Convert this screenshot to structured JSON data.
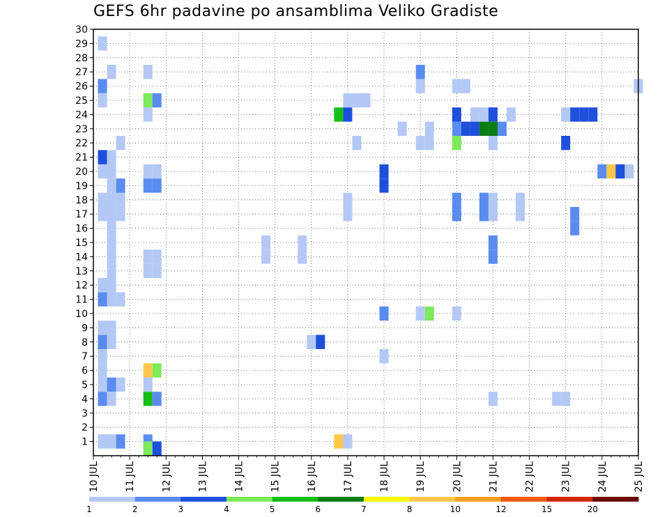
{
  "chart_data": {
    "type": "heatmap",
    "title": "GEFS 6hr padavine po ansamblima Veliko Gradiste",
    "x_ticks": [
      "10 JUL",
      "11 JUL",
      "12 JUL",
      "13 JUL",
      "14 JUL",
      "15 JUL",
      "16 JUL",
      "17 JUL",
      "18 JUL",
      "19 JUL",
      "20 JUL",
      "21 JUL",
      "22 JUL",
      "23 JUL",
      "24 JUL",
      "25 JUL"
    ],
    "xlim_days": [
      10,
      25
    ],
    "y_ticks": [
      1,
      2,
      3,
      4,
      5,
      6,
      7,
      8,
      9,
      10,
      11,
      12,
      13,
      14,
      15,
      16,
      17,
      18,
      19,
      20,
      21,
      22,
      23,
      24,
      25,
      26,
      27,
      28,
      29,
      30
    ],
    "ylim": [
      0,
      30
    ],
    "grid": true,
    "colorbar": {
      "labels": [
        "1",
        "2",
        "3",
        "4",
        "5",
        "6",
        "7",
        "8",
        "10",
        "12",
        "15",
        "20"
      ],
      "colors": [
        "#b4c8f5",
        "#5a8cf0",
        "#1e50dc",
        "#7dea5a",
        "#14be14",
        "#0a7d14",
        "#fffa0a",
        "#ffc84b",
        "#ffa01e",
        "#f05a0a",
        "#d2280a",
        "#6e0a0a"
      ]
    },
    "cells": [
      {
        "d": 10.25,
        "m": 1,
        "c": 0
      },
      {
        "d": 10.5,
        "m": 1,
        "c": 0
      },
      {
        "d": 10.75,
        "m": 1,
        "c": 1
      },
      {
        "d": 11.5,
        "m": 1,
        "c": 1
      },
      {
        "d": 16.75,
        "m": 1,
        "c": 7
      },
      {
        "d": 17.0,
        "m": 1,
        "c": 0
      },
      {
        "d": 11.5,
        "m": 0.5,
        "c": 3
      },
      {
        "d": 11.75,
        "m": 0.5,
        "c": 2
      },
      {
        "d": 10.25,
        "m": 4,
        "c": 1
      },
      {
        "d": 10.5,
        "m": 4,
        "c": 0
      },
      {
        "d": 11.5,
        "m": 4,
        "c": 4
      },
      {
        "d": 11.75,
        "m": 4,
        "c": 1
      },
      {
        "d": 21.0,
        "m": 4,
        "c": 0
      },
      {
        "d": 22.75,
        "m": 4,
        "c": 0
      },
      {
        "d": 23.0,
        "m": 4,
        "c": 0
      },
      {
        "d": 10.25,
        "m": 5,
        "c": 0
      },
      {
        "d": 10.5,
        "m": 5,
        "c": 1
      },
      {
        "d": 10.75,
        "m": 5,
        "c": 0
      },
      {
        "d": 11.5,
        "m": 5,
        "c": 0
      },
      {
        "d": 10.25,
        "m": 6,
        "c": 0
      },
      {
        "d": 11.5,
        "m": 6,
        "c": 7
      },
      {
        "d": 11.75,
        "m": 6,
        "c": 3
      },
      {
        "d": 10.25,
        "m": 7,
        "c": 0
      },
      {
        "d": 18.0,
        "m": 7,
        "c": 0
      },
      {
        "d": 10.25,
        "m": 8,
        "c": 1
      },
      {
        "d": 10.5,
        "m": 8,
        "c": 0
      },
      {
        "d": 16.0,
        "m": 8,
        "c": 0
      },
      {
        "d": 16.25,
        "m": 8,
        "c": 2
      },
      {
        "d": 10.25,
        "m": 9,
        "c": 0
      },
      {
        "d": 10.5,
        "m": 9,
        "c": 0
      },
      {
        "d": 18.0,
        "m": 10,
        "c": 1
      },
      {
        "d": 19.0,
        "m": 10,
        "c": 0
      },
      {
        "d": 19.25,
        "m": 10,
        "c": 3
      },
      {
        "d": 20.0,
        "m": 10,
        "c": 0
      },
      {
        "d": 10.25,
        "m": 11,
        "c": 1
      },
      {
        "d": 10.5,
        "m": 11,
        "c": 0
      },
      {
        "d": 10.75,
        "m": 11,
        "c": 0
      },
      {
        "d": 10.25,
        "m": 12,
        "c": 0
      },
      {
        "d": 10.5,
        "m": 12,
        "c": 0
      },
      {
        "d": 10.5,
        "m": 13,
        "c": 0
      },
      {
        "d": 11.5,
        "m": 13,
        "c": 0
      },
      {
        "d": 11.75,
        "m": 13,
        "c": 0
      },
      {
        "d": 10.5,
        "m": 14,
        "c": 0
      },
      {
        "d": 11.5,
        "m": 14,
        "c": 0
      },
      {
        "d": 11.75,
        "m": 14,
        "c": 0
      },
      {
        "d": 14.75,
        "m": 14,
        "c": 0
      },
      {
        "d": 15.75,
        "m": 14,
        "c": 0
      },
      {
        "d": 21.0,
        "m": 14,
        "c": 1
      },
      {
        "d": 10.5,
        "m": 15,
        "c": 0
      },
      {
        "d": 14.75,
        "m": 15,
        "c": 0
      },
      {
        "d": 15.75,
        "m": 15,
        "c": 0
      },
      {
        "d": 21.0,
        "m": 15,
        "c": 1
      },
      {
        "d": 10.5,
        "m": 16,
        "c": 0
      },
      {
        "d": 23.25,
        "m": 16,
        "c": 1
      },
      {
        "d": 10.25,
        "m": 17,
        "c": 0
      },
      {
        "d": 10.5,
        "m": 17,
        "c": 0
      },
      {
        "d": 10.75,
        "m": 17,
        "c": 0
      },
      {
        "d": 17.0,
        "m": 17,
        "c": 0
      },
      {
        "d": 20.0,
        "m": 17,
        "c": 1
      },
      {
        "d": 20.75,
        "m": 17,
        "c": 1
      },
      {
        "d": 21.0,
        "m": 17,
        "c": 0
      },
      {
        "d": 21.75,
        "m": 17,
        "c": 0
      },
      {
        "d": 10.25,
        "m": 18,
        "c": 0
      },
      {
        "d": 10.5,
        "m": 18,
        "c": 0
      },
      {
        "d": 10.75,
        "m": 18,
        "c": 0
      },
      {
        "d": 17.0,
        "m": 18,
        "c": 0
      },
      {
        "d": 20.0,
        "m": 18,
        "c": 1
      },
      {
        "d": 20.75,
        "m": 18,
        "c": 1
      },
      {
        "d": 21.0,
        "m": 18,
        "c": 0
      },
      {
        "d": 21.75,
        "m": 18,
        "c": 0
      },
      {
        "d": 23.25,
        "m": 17,
        "c": 1
      },
      {
        "d": 10.5,
        "m": 19,
        "c": 0
      },
      {
        "d": 10.75,
        "m": 19,
        "c": 1
      },
      {
        "d": 11.5,
        "m": 19,
        "c": 1
      },
      {
        "d": 11.75,
        "m": 19,
        "c": 1
      },
      {
        "d": 18.0,
        "m": 19,
        "c": 2
      },
      {
        "d": 10.25,
        "m": 20,
        "c": 0
      },
      {
        "d": 10.5,
        "m": 20,
        "c": 0
      },
      {
        "d": 11.5,
        "m": 20,
        "c": 0
      },
      {
        "d": 11.75,
        "m": 20,
        "c": 0
      },
      {
        "d": 18.0,
        "m": 20,
        "c": 2
      },
      {
        "d": 24.0,
        "m": 20,
        "c": 1
      },
      {
        "d": 24.25,
        "m": 20,
        "c": 7
      },
      {
        "d": 24.5,
        "m": 20,
        "c": 2
      },
      {
        "d": 24.75,
        "m": 20,
        "c": 0
      },
      {
        "d": 10.25,
        "m": 21,
        "c": 2
      },
      {
        "d": 10.5,
        "m": 21,
        "c": 0
      },
      {
        "d": 10.75,
        "m": 22,
        "c": 0
      },
      {
        "d": 17.25,
        "m": 22,
        "c": 0
      },
      {
        "d": 19.0,
        "m": 22,
        "c": 0
      },
      {
        "d": 19.25,
        "m": 22,
        "c": 0
      },
      {
        "d": 20.0,
        "m": 22,
        "c": 3
      },
      {
        "d": 21.0,
        "m": 22,
        "c": 0
      },
      {
        "d": 23.0,
        "m": 22,
        "c": 2
      },
      {
        "d": 18.5,
        "m": 23,
        "c": 0
      },
      {
        "d": 19.25,
        "m": 23,
        "c": 0
      },
      {
        "d": 20.0,
        "m": 23,
        "c": 1
      },
      {
        "d": 20.25,
        "m": 23,
        "c": 2
      },
      {
        "d": 20.5,
        "m": 23,
        "c": 2
      },
      {
        "d": 20.75,
        "m": 23,
        "c": 5
      },
      {
        "d": 21.0,
        "m": 23,
        "c": 5
      },
      {
        "d": 21.25,
        "m": 23,
        "c": 1
      },
      {
        "d": 11.5,
        "m": 24,
        "c": 0
      },
      {
        "d": 16.75,
        "m": 24,
        "c": 4
      },
      {
        "d": 17.0,
        "m": 24,
        "c": 2
      },
      {
        "d": 20.0,
        "m": 24,
        "c": 2
      },
      {
        "d": 20.5,
        "m": 24,
        "c": 0
      },
      {
        "d": 20.75,
        "m": 24,
        "c": 0
      },
      {
        "d": 21.0,
        "m": 24,
        "c": 2
      },
      {
        "d": 21.5,
        "m": 24,
        "c": 0
      },
      {
        "d": 23.0,
        "m": 24,
        "c": 0
      },
      {
        "d": 23.25,
        "m": 24,
        "c": 2
      },
      {
        "d": 23.5,
        "m": 24,
        "c": 2
      },
      {
        "d": 23.75,
        "m": 24,
        "c": 2
      },
      {
        "d": 10.25,
        "m": 25,
        "c": 0
      },
      {
        "d": 11.5,
        "m": 25,
        "c": 3
      },
      {
        "d": 11.75,
        "m": 25,
        "c": 1
      },
      {
        "d": 17.0,
        "m": 25,
        "c": 0
      },
      {
        "d": 17.25,
        "m": 25,
        "c": 0
      },
      {
        "d": 17.5,
        "m": 25,
        "c": 0
      },
      {
        "d": 10.25,
        "m": 26,
        "c": 1
      },
      {
        "d": 19.0,
        "m": 26,
        "c": 0
      },
      {
        "d": 20.0,
        "m": 26,
        "c": 0
      },
      {
        "d": 20.25,
        "m": 26,
        "c": 0
      },
      {
        "d": 25.0,
        "m": 26,
        "c": 0
      },
      {
        "d": 10.5,
        "m": 27,
        "c": 0
      },
      {
        "d": 11.5,
        "m": 27,
        "c": 0
      },
      {
        "d": 19.0,
        "m": 27,
        "c": 1
      },
      {
        "d": 10.25,
        "m": 29,
        "c": 0
      }
    ]
  }
}
